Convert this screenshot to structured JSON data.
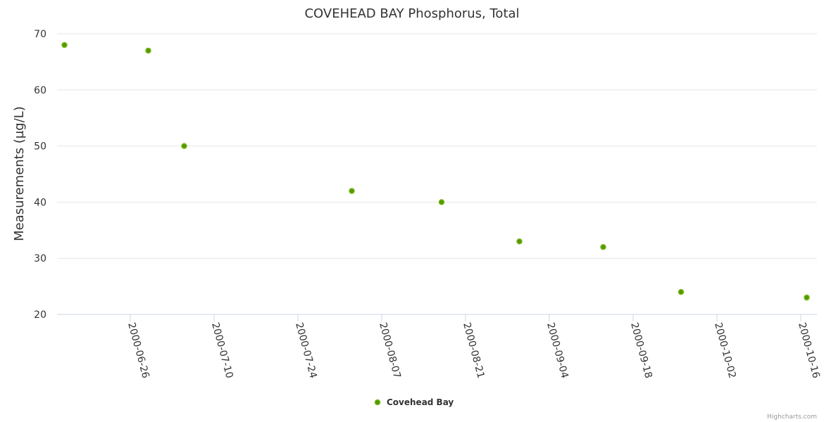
{
  "chart_data": {
    "type": "scatter",
    "title": "COVEHEAD BAY Phosphorus, Total",
    "xlabel": "",
    "ylabel": "Measurements (µg/L)",
    "ylim": [
      20,
      70
    ],
    "yticks": [
      20,
      30,
      40,
      50,
      60,
      70
    ],
    "xticks": [
      "2000-06-26",
      "2000-07-10",
      "2000-07-24",
      "2000-08-07",
      "2000-08-21",
      "2000-09-04",
      "2000-09-18",
      "2000-10-02",
      "2000-10-16"
    ],
    "xlim": [
      "2000-06-15",
      "2000-10-18"
    ],
    "grid": true,
    "legend": {
      "position": "bottom-center",
      "entries": [
        "Covehead Bay"
      ]
    },
    "series": [
      {
        "name": "Covehead Bay",
        "color": "#4f9a00",
        "points": [
          {
            "x": "2000-06-15",
            "y": 68
          },
          {
            "x": "2000-06-29",
            "y": 67
          },
          {
            "x": "2000-07-05",
            "y": 50
          },
          {
            "x": "2000-08-02",
            "y": 42
          },
          {
            "x": "2000-08-17",
            "y": 40
          },
          {
            "x": "2000-08-30",
            "y": 33
          },
          {
            "x": "2000-09-13",
            "y": 32
          },
          {
            "x": "2000-09-26",
            "y": 24
          },
          {
            "x": "2000-10-17",
            "y": 23
          }
        ]
      }
    ]
  },
  "credits": "Highcharts.com"
}
